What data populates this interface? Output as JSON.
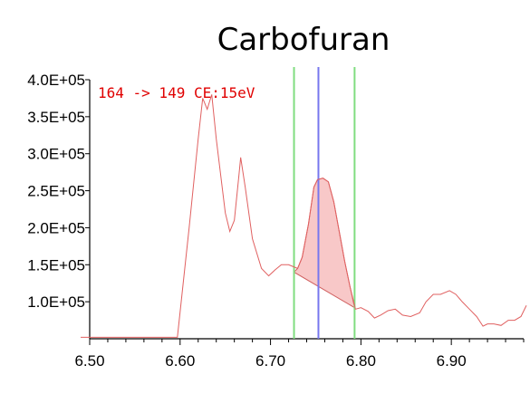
{
  "chart_data": {
    "type": "line",
    "title": "Carbofuran",
    "annotation": "164 -> 149 CE:15eV",
    "xlim": [
      6.5,
      6.98
    ],
    "ylim": [
      50000,
      400000
    ],
    "x_ticks": [
      6.5,
      6.6,
      6.7,
      6.8,
      6.9
    ],
    "x_tick_labels": [
      "6.50",
      "6.60",
      "6.70",
      "6.80",
      "6.90"
    ],
    "y_ticks": [
      100000,
      150000,
      200000,
      250000,
      300000,
      350000,
      400000
    ],
    "y_tick_labels": [
      "1.0E+05",
      "1.5E+05",
      "2.0E+05",
      "2.5E+05",
      "3.0E+05",
      "3.5E+05",
      "4.0E+05"
    ],
    "series": [
      {
        "color": "#e06060",
        "x": [
          6.49,
          6.597,
          6.61,
          6.62,
          6.625,
          6.63,
          6.635,
          6.64,
          6.65,
          6.655,
          6.66,
          6.665,
          6.667,
          6.672,
          6.68,
          6.69,
          6.698,
          6.705,
          6.712,
          6.72,
          6.726,
          6.73,
          6.735,
          6.742,
          6.748,
          6.752,
          6.758,
          6.764,
          6.77,
          6.776,
          6.782,
          6.788,
          6.794,
          6.8,
          6.808,
          6.815,
          6.822,
          6.83,
          6.838,
          6.846,
          6.855,
          6.865,
          6.872,
          6.88,
          6.888,
          6.898,
          6.905,
          6.912,
          6.92,
          6.928,
          6.935,
          6.94,
          6.947,
          6.955,
          6.963,
          6.97,
          6.977,
          6.983
        ],
        "values": [
          52000,
          52000,
          200000,
          320000,
          375000,
          360000,
          380000,
          320000,
          220000,
          195000,
          210000,
          270000,
          295000,
          255000,
          185000,
          145000,
          135000,
          143000,
          150000,
          150000,
          147000,
          145000,
          160000,
          205000,
          255000,
          265000,
          267000,
          262000,
          235000,
          195000,
          155000,
          120000,
          90000,
          92000,
          87000,
          78000,
          82000,
          88000,
          90000,
          82000,
          80000,
          85000,
          100000,
          110000,
          110000,
          115000,
          110000,
          100000,
          90000,
          80000,
          67000,
          70000,
          70000,
          68000,
          75000,
          75000,
          80000,
          95000
        ]
      }
    ],
    "vertical_markers": [
      {
        "x": 6.726,
        "color": "#80dd80"
      },
      {
        "x": 6.753,
        "color": "#7777ee"
      },
      {
        "x": 6.793,
        "color": "#80dd80"
      }
    ],
    "integration": {
      "x_start": 6.726,
      "x_end": 6.793,
      "baseline_start": 140000,
      "baseline_end": 92000,
      "fill": "#f5b5b5"
    }
  }
}
